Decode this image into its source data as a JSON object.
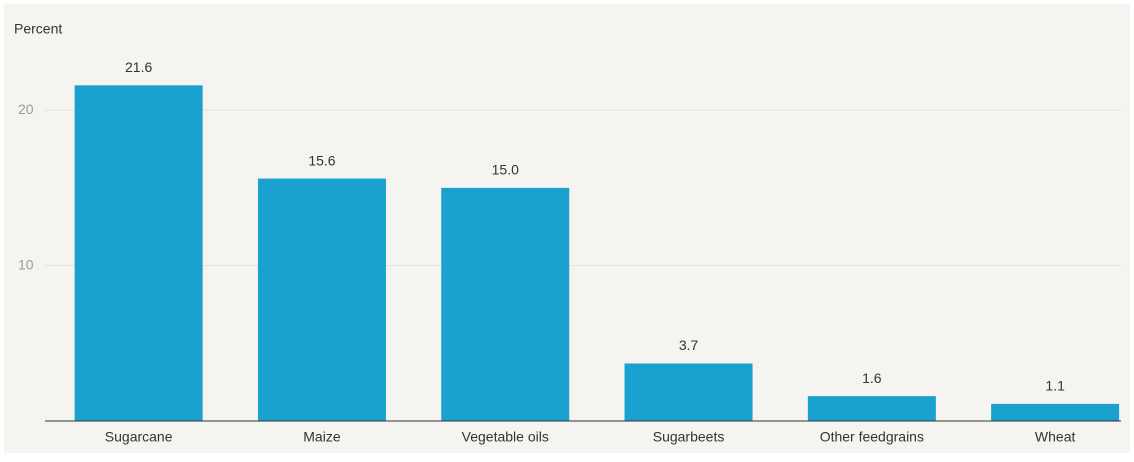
{
  "chart_data": {
    "type": "bar",
    "y_label": "Percent",
    "categories": [
      "Sugarcane",
      "Maize",
      "Vegetable oils",
      "Sugarbeets",
      "Other feedgrains",
      "Wheat"
    ],
    "values": [
      21.6,
      15.6,
      15.0,
      3.7,
      1.6,
      1.1
    ],
    "value_labels": [
      "21.6",
      "15.6",
      "15.0",
      "3.7",
      "1.6",
      "1.1"
    ],
    "color": "#1aa1d0",
    "ylim": [
      0,
      24
    ],
    "yticks": [
      10,
      20
    ],
    "grid": true
  }
}
